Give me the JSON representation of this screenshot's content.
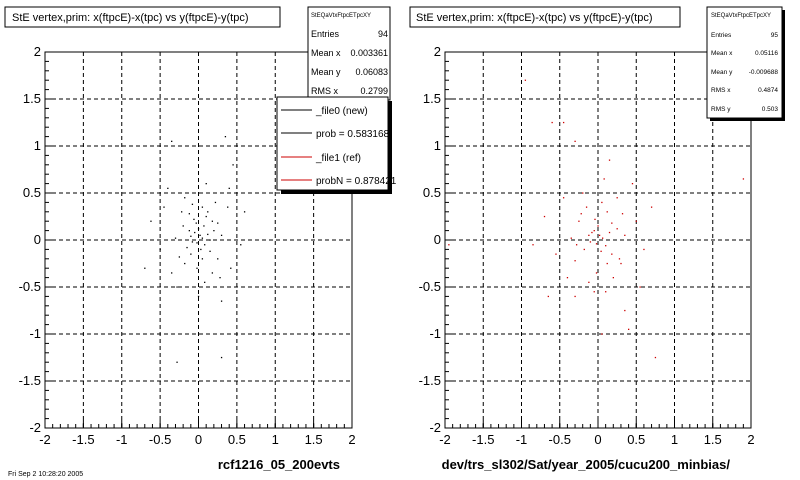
{
  "footer_text": "Fri Sep 2 10:28:20 2005",
  "chart_data": [
    {
      "type": "scatter",
      "title": "StE  vertex,prim: x(ftpcE)-x(tpc) vs y(ftpcE)-y(tpc)",
      "xlabel": "rcf1216_05_200evts",
      "ylabel": "",
      "xlim": [
        -2,
        2
      ],
      "ylim": [
        -2,
        2
      ],
      "x_ticks": [
        "-2",
        "-1.5",
        "-1",
        "-0.5",
        "0",
        "0.5",
        "1",
        "1.5",
        "2"
      ],
      "y_ticks": [
        "2",
        "1.5",
        "1",
        "0.5",
        "0",
        "-0.5",
        "-1",
        "-1.5",
        "-2"
      ],
      "grid": true,
      "marker_color": "#000000",
      "stats_box": {
        "title": "StEQaVtxFtpcETpcXY",
        "rows": [
          {
            "label": "Entries",
            "value": "94"
          },
          {
            "label": "Mean x",
            "value": "0.003361"
          },
          {
            "label": "Mean y",
            "value": "0.06083"
          },
          {
            "label": "RMS x",
            "value": "0.2799"
          }
        ]
      },
      "legend": {
        "placement": "top-right",
        "entries": [
          {
            "label": "_file0 (new)",
            "color": "#000000"
          },
          {
            "label": "prob = 0.583168",
            "color": "#000000"
          },
          {
            "label": "_file1 (ref)",
            "color": "#cc0000"
          },
          {
            "label": "probN = 0.878421",
            "color": "#cc0000"
          }
        ]
      },
      "points": [
        [
          0.02,
          0.05
        ],
        [
          -0.02,
          -0.03
        ],
        [
          0.05,
          0.02
        ],
        [
          -0.05,
          0.08
        ],
        [
          0.08,
          -0.05
        ],
        [
          -0.08,
          -0.02
        ],
        [
          0.0,
          0.12
        ],
        [
          0.03,
          -0.1
        ],
        [
          -0.1,
          0.04
        ],
        [
          0.12,
          0.06
        ],
        [
          -0.03,
          0.18
        ],
        [
          0.15,
          -0.12
        ],
        [
          -0.15,
          -0.08
        ],
        [
          0.2,
          0.1
        ],
        [
          -0.2,
          0.15
        ],
        [
          0.1,
          0.25
        ],
        [
          -0.12,
          0.28
        ],
        [
          0.25,
          -0.2
        ],
        [
          -0.25,
          -0.18
        ],
        [
          0.3,
          0.05
        ],
        [
          -0.3,
          0.02
        ],
        [
          0.05,
          0.35
        ],
        [
          0.22,
          0.4
        ],
        [
          -0.18,
          0.45
        ],
        [
          0.4,
          0.55
        ],
        [
          -0.02,
          -0.3
        ],
        [
          0.18,
          -0.35
        ],
        [
          -0.35,
          -0.35
        ],
        [
          0.08,
          -0.45
        ],
        [
          -0.28,
          -0.5
        ],
        [
          0.45,
          0.8
        ],
        [
          -0.62,
          0.2
        ],
        [
          0.3,
          -0.65
        ],
        [
          -0.7,
          -0.3
        ],
        [
          0.55,
          -0.05
        ],
        [
          -0.5,
          -0.1
        ],
        [
          0.6,
          0.3
        ],
        [
          0.35,
          1.1
        ],
        [
          -0.35,
          1.05
        ],
        [
          0.1,
          0.6
        ],
        [
          -0.08,
          0.38
        ],
        [
          0.12,
          0.3
        ],
        [
          -0.4,
          0.55
        ],
        [
          0.28,
          -0.4
        ],
        [
          0.0,
          -0.6
        ],
        [
          -0.28,
          -1.3
        ],
        [
          0.3,
          -1.25
        ],
        [
          -0.1,
          -0.15
        ],
        [
          0.15,
          0.0
        ],
        [
          -0.18,
          -0.25
        ],
        [
          0.38,
          0.35
        ],
        [
          0.05,
          -0.2
        ],
        [
          -0.06,
          0.22
        ],
        [
          0.25,
          0.18
        ],
        [
          -0.22,
          0.3
        ],
        [
          0.07,
          0.15
        ],
        [
          -0.12,
          0.1
        ],
        [
          0.18,
          0.2
        ],
        [
          0.42,
          -0.3
        ],
        [
          -0.45,
          0.35
        ]
      ]
    },
    {
      "type": "scatter",
      "title": "StE  vertex,prim: x(ftpcE)-x(tpc) vs y(ftpcE)-y(tpc)",
      "xlabel": "dev/trs_sl302/Sat/year_2005/cucu200_minbias/",
      "ylabel": "",
      "xlim": [
        -2,
        2
      ],
      "ylim": [
        -2,
        2
      ],
      "x_ticks": [
        "-2",
        "-1.5",
        "-1",
        "-0.5",
        "0",
        "0.5",
        "1",
        "1.5",
        "2"
      ],
      "y_ticks": [
        "2",
        "1.5",
        "1",
        "0.5",
        "0",
        "-0.5",
        "-1",
        "-1.5",
        "-2"
      ],
      "grid": true,
      "marker_color": "#cc0000",
      "stats_box": {
        "title": "StEQaVtxFtpcETpcXY",
        "rows": [
          {
            "label": "Entries",
            "value": "95"
          },
          {
            "label": "Mean x",
            "value": "0.05116"
          },
          {
            "label": "Mean y",
            "value": "-0.009688"
          },
          {
            "label": "RMS x",
            "value": "0.4874"
          },
          {
            "label": "RMS y",
            "value": "0.503"
          }
        ]
      },
      "points": [
        [
          0.02,
          0.05
        ],
        [
          -0.02,
          -0.04
        ],
        [
          0.06,
          0.02
        ],
        [
          -0.05,
          0.1
        ],
        [
          0.1,
          -0.06
        ],
        [
          -0.1,
          -0.02
        ],
        [
          0.0,
          0.15
        ],
        [
          0.04,
          -0.12
        ],
        [
          -0.12,
          0.05
        ],
        [
          0.15,
          0.08
        ],
        [
          -0.04,
          0.22
        ],
        [
          0.18,
          -0.15
        ],
        [
          -0.18,
          -0.1
        ],
        [
          0.25,
          0.12
        ],
        [
          -0.25,
          0.2
        ],
        [
          0.12,
          0.3
        ],
        [
          -0.15,
          0.35
        ],
        [
          0.3,
          -0.25
        ],
        [
          -0.3,
          -0.22
        ],
        [
          0.35,
          0.05
        ],
        [
          -0.35,
          0.02
        ],
        [
          0.05,
          0.4
        ],
        [
          0.25,
          0.45
        ],
        [
          -0.2,
          0.5
        ],
        [
          0.45,
          0.6
        ],
        [
          -0.02,
          -0.35
        ],
        [
          0.2,
          -0.4
        ],
        [
          -0.4,
          -0.4
        ],
        [
          0.1,
          -0.55
        ],
        [
          -0.3,
          -0.6
        ],
        [
          0.15,
          0.85
        ],
        [
          -0.7,
          0.25
        ],
        [
          0.35,
          -0.75
        ],
        [
          -0.65,
          -0.6
        ],
        [
          0.6,
          -0.1
        ],
        [
          -0.55,
          -0.15
        ],
        [
          0.7,
          0.35
        ],
        [
          -0.3,
          1.05
        ],
        [
          -0.45,
          1.25
        ],
        [
          -0.6,
          1.25
        ],
        [
          0.75,
          -1.25
        ],
        [
          -0.95,
          1.7
        ],
        [
          1.9,
          0.65
        ],
        [
          -1.95,
          -0.05
        ],
        [
          0.4,
          -0.95
        ],
        [
          -0.05,
          -0.55
        ],
        [
          0.28,
          -0.2
        ],
        [
          -0.22,
          0.28
        ],
        [
          0.08,
          0.65
        ],
        [
          -0.12,
          -0.45
        ],
        [
          0.5,
          0.2
        ],
        [
          -0.45,
          0.45
        ],
        [
          0.55,
          -0.5
        ],
        [
          0.05,
          -1.0
        ],
        [
          -0.85,
          -0.05
        ],
        [
          0.18,
          0.18
        ],
        [
          -0.08,
          0.08
        ],
        [
          0.12,
          -0.25
        ],
        [
          -0.28,
          -0.05
        ],
        [
          0.32,
          0.28
        ]
      ]
    }
  ]
}
